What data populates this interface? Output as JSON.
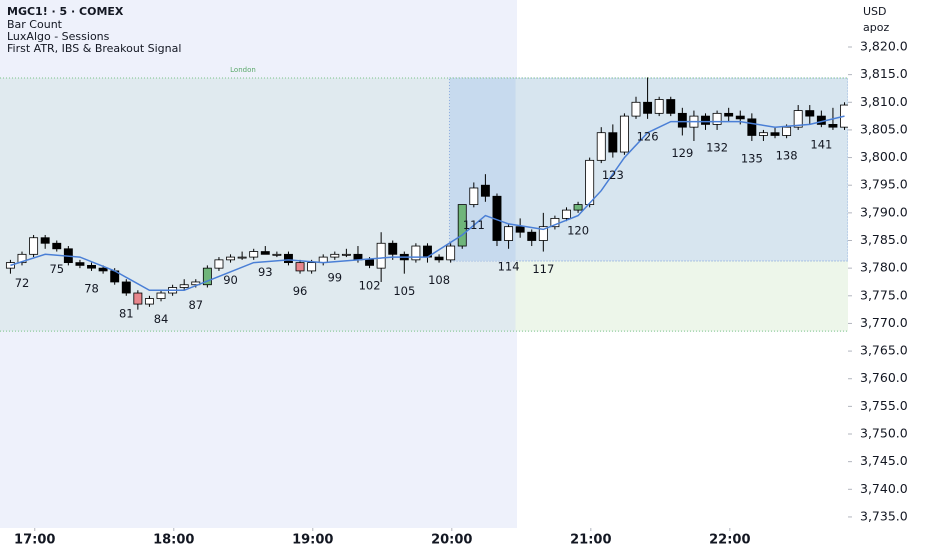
{
  "chart_data": {
    "type": "candlestick",
    "title": "MGC1! · 5 · COMEX",
    "indicators": [
      "Bar Count",
      "LuxAlgo - Sessions",
      "First ATR, IBS & Breakout Signal"
    ],
    "currency": "USD",
    "user": "apoz",
    "up_color": "#ffffff",
    "down_color": "#000000",
    "ema_color": "#4a7fd6",
    "x": [
      71,
      72,
      73,
      74,
      75,
      76,
      77,
      78,
      79,
      80,
      81,
      82,
      83,
      84,
      85,
      86,
      87,
      88,
      89,
      90,
      91,
      92,
      93,
      94,
      95,
      96,
      97,
      98,
      99,
      100,
      101,
      102,
      103,
      104,
      105,
      106,
      107,
      108,
      109,
      110,
      111,
      112,
      113,
      114,
      115,
      116,
      117,
      118,
      119,
      120,
      121,
      122,
      123,
      124,
      125,
      126,
      127,
      128,
      129,
      130,
      131,
      132,
      133,
      134,
      135,
      136,
      137,
      138,
      139,
      140,
      141,
      142,
      143
    ],
    "open": [
      3780,
      3781,
      3782.5,
      3785.5,
      3784.5,
      3783.5,
      3781,
      3780.5,
      3780,
      3779.5,
      3777.5,
      3775.5,
      3773.5,
      3774.5,
      3775.5,
      3776.5,
      3777,
      3777,
      3780,
      3781.5,
      3782,
      3782,
      3783,
      3782.5,
      3782.5,
      3781,
      3779.5,
      3781,
      3782,
      3782.5,
      3782.5,
      3781.5,
      3780,
      3784.5,
      3782.5,
      3781.5,
      3784,
      3782,
      3781.5,
      3784,
      3791.5,
      3795,
      3793,
      3785,
      3787.5,
      3786.5,
      3785,
      3787.5,
      3789,
      3790.5,
      3791.5,
      3799.5,
      3804.5,
      3801,
      3807.5,
      3810,
      3808,
      3810.5,
      3808,
      3805.5,
      3807.5,
      3806,
      3808,
      3807.5,
      3807,
      3804,
      3804.5,
      3804,
      3805.5,
      3808.5,
      3807.5,
      3806,
      3805.5
    ],
    "high": [
      3781.5,
      3783,
      3786,
      3786,
      3785,
      3784,
      3781.5,
      3781,
      3780.5,
      3780,
      3778,
      3776,
      3775,
      3776,
      3777,
      3778,
      3778,
      3780.5,
      3782,
      3782.5,
      3783,
      3783.5,
      3784,
      3783,
      3783,
      3781.5,
      3781.5,
      3782.5,
      3783,
      3783.5,
      3784,
      3782,
      3786.5,
      3785,
      3783,
      3784.5,
      3784.5,
      3782.5,
      3784.5,
      3791.5,
      3795.5,
      3797,
      3793.5,
      3788,
      3789,
      3787,
      3790,
      3789.5,
      3791,
      3792,
      3800,
      3805.5,
      3806,
      3808,
      3811,
      3814.5,
      3811,
      3811,
      3809,
      3808.5,
      3808,
      3808.5,
      3809,
      3808.5,
      3808,
      3805,
      3805.5,
      3806,
      3809.5,
      3809.5,
      3808.5,
      3809,
      3810
    ],
    "low": [
      3779,
      3780.5,
      3782,
      3783.5,
      3783,
      3780.5,
      3780,
      3779.5,
      3779,
      3777,
      3775,
      3772.5,
      3773,
      3774,
      3775,
      3776,
      3776.5,
      3776.5,
      3779.5,
      3781,
      3781.5,
      3781.5,
      3782.5,
      3782,
      3780.5,
      3779,
      3779,
      3780.5,
      3781.5,
      3782,
      3781,
      3780,
      3777.5,
      3781.5,
      3779,
      3781,
      3781,
      3781,
      3781,
      3783.5,
      3791,
      3792,
      3784,
      3783.5,
      3785.5,
      3784,
      3783,
      3787,
      3788.5,
      3790,
      3791,
      3799,
      3800,
      3800.5,
      3807,
      3807,
      3807.5,
      3807.5,
      3804,
      3803,
      3805,
      3805,
      3806.5,
      3806,
      3803,
      3803,
      3803.5,
      3803.5,
      3805,
      3806,
      3805.5,
      3805,
      3805
    ],
    "close": [
      3781,
      3782.5,
      3785.5,
      3784.5,
      3783.5,
      3781,
      3780.5,
      3780,
      3779.5,
      3777.5,
      3775.5,
      3773.5,
      3774.5,
      3775.5,
      3776.5,
      3777,
      3777.5,
      3780,
      3781.5,
      3782,
      3782,
      3783,
      3782.5,
      3782.5,
      3781,
      3779.5,
      3781,
      3782,
      3782.5,
      3782.5,
      3781.5,
      3780.5,
      3784.5,
      3782.5,
      3781.5,
      3784,
      3782,
      3781.5,
      3784,
      3791.5,
      3794.5,
      3793,
      3785,
      3787.5,
      3786.5,
      3785,
      3787.5,
      3789,
      3790.5,
      3791.5,
      3799.5,
      3804.5,
      3801,
      3807.5,
      3810,
      3808,
      3810.5,
      3808,
      3805.5,
      3807.5,
      3806,
      3808,
      3807.5,
      3807,
      3804,
      3804.5,
      3804,
      3805.5,
      3808.5,
      3807.5,
      3806,
      3805.5,
      3809.5
    ],
    "highlights": [
      {
        "x": 82,
        "color": "#e8868c"
      },
      {
        "x": 88,
        "color": "#6fb57a"
      },
      {
        "x": 96,
        "color": "#e8868c"
      },
      {
        "x": 110,
        "color": "#6fb57a"
      },
      {
        "x": 120,
        "color": "#6fb57a"
      }
    ],
    "bar_count_labels": [
      72,
      75,
      78,
      81,
      84,
      87,
      90,
      93,
      96,
      99,
      102,
      105,
      108,
      111,
      114,
      117,
      120,
      123,
      126,
      129,
      132,
      135,
      138,
      141
    ],
    "ema": {
      "x": [
        71,
        74,
        77,
        80,
        83,
        86,
        89,
        92,
        95,
        98,
        101,
        104,
        107,
        110,
        112,
        114,
        117,
        120,
        122,
        124,
        126,
        128,
        131,
        134,
        137,
        140,
        143
      ],
      "values": [
        3780.5,
        3782.5,
        3782,
        3779.5,
        3776,
        3776,
        3778.5,
        3781,
        3781.5,
        3781,
        3781.5,
        3782,
        3782,
        3786,
        3789.5,
        3788,
        3787,
        3789.5,
        3794,
        3800,
        3804.5,
        3806.5,
        3806.5,
        3806.5,
        3805.5,
        3806,
        3807.5
      ]
    },
    "london_box": {
      "label": "London",
      "top": 3814.4,
      "bottom": 3768.6
    },
    "range_box": {
      "start": 108.9,
      "end": 114.6,
      "top": 3814.4,
      "bottom": 3781.3
    },
    "xlim": [
      70.1,
      143.3
    ],
    "ylim": [
      3733.0,
      3828.5
    ],
    "xticks": [
      {
        "value": 73.1,
        "label": "17:00"
      },
      {
        "value": 85.1,
        "label": "18:00"
      },
      {
        "value": 97.1,
        "label": "19:00"
      },
      {
        "value": 109.1,
        "label": "20:00"
      },
      {
        "value": 121.1,
        "label": "21:00"
      },
      {
        "value": 133.1,
        "label": "22:00"
      }
    ],
    "yticks": [
      {
        "value": 3820,
        "label": "3,820.0"
      },
      {
        "value": 3815,
        "label": "3,815.0"
      },
      {
        "value": 3810,
        "label": "3,810.0"
      },
      {
        "value": 3805,
        "label": "3,805.0"
      },
      {
        "value": 3800,
        "label": "3,800.0"
      },
      {
        "value": 3795,
        "label": "3,795.0"
      },
      {
        "value": 3790,
        "label": "3,790.0"
      },
      {
        "value": 3785,
        "label": "3,785.0"
      },
      {
        "value": 3780,
        "label": "3,780.0"
      },
      {
        "value": 3775,
        "label": "3,775.0"
      },
      {
        "value": 3770,
        "label": "3,770.0"
      },
      {
        "value": 3765,
        "label": "3,765.0"
      },
      {
        "value": 3760,
        "label": "3,760.0"
      },
      {
        "value": 3755,
        "label": "3,755.0"
      },
      {
        "value": 3750,
        "label": "3,750.0"
      },
      {
        "value": 3745,
        "label": "3,745.0"
      },
      {
        "value": 3740,
        "label": "3,740.0"
      },
      {
        "value": 3735,
        "label": "3,735.0"
      }
    ]
  }
}
